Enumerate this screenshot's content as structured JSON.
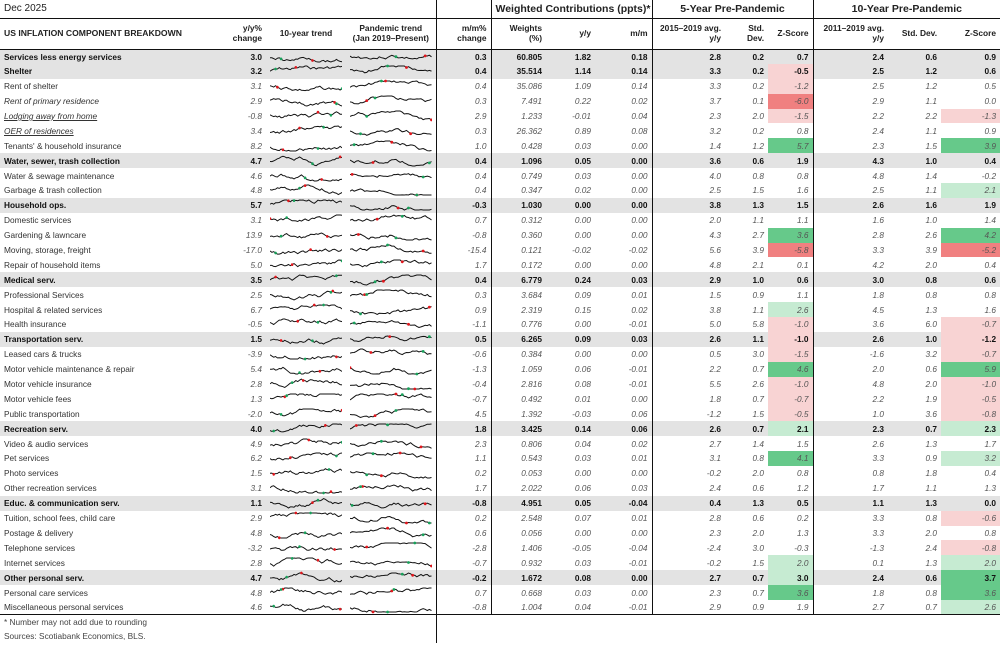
{
  "top": {
    "date": "Dec 2025",
    "group_weighted": "Weighted Contributions (ppts)*",
    "group_5y": "5-Year Pre-Pandemic",
    "group_10y": "10-Year Pre-Pandemic"
  },
  "headers": {
    "title": "US INFLATION COMPONENT BREAKDOWN",
    "yy": "y/y% change",
    "trend10": "10-year trend",
    "pandemic": "Pandemic trend (Jan 2019–Present)",
    "mm": "m/m% change",
    "weights": "Weights (%)",
    "w_yy": "y/y",
    "w_mm": "m/m",
    "p5_avg": "2015–2019 avg. y/y",
    "p5_sd": "Std. Dev.",
    "p5_z": "Z-Score",
    "p10_avg": "2011–2019 avg. y/y",
    "p10_sd": "Std. Dev.",
    "p10_z": "Z-Score"
  },
  "colors": {
    "neg_strong": "#f08080",
    "neg_light": "#f8d3d3",
    "pos_strong": "#66c98a",
    "pos_light": "#c6ebd2",
    "bold_row_bg": "#e3e3e3",
    "spark_line": "#111111",
    "spark_red": "#e0161c",
    "spark_green": "#18a05a"
  },
  "rows": [
    {
      "label": "Services less energy services",
      "style": "bold",
      "yy": "3.0",
      "mm": "0.3",
      "w": "60.805",
      "wyy": "1.82",
      "wmm": "0.18",
      "a5": "2.8",
      "s5": "0.2",
      "z5": "0.7",
      "a10": "2.4",
      "s10": "0.6",
      "z10": "0.9"
    },
    {
      "label": "Shelter",
      "style": "bold",
      "yy": "3.2",
      "mm": "0.4",
      "w": "35.514",
      "wyy": "1.14",
      "wmm": "0.14",
      "a5": "3.3",
      "s5": "0.2",
      "z5": "-0.5",
      "a10": "2.5",
      "s10": "1.2",
      "z10": "0.6"
    },
    {
      "label": "Rent of shelter",
      "style": "",
      "yy": "3.1",
      "mm": "0.4",
      "w": "35.086",
      "wyy": "1.09",
      "wmm": "0.14",
      "a5": "3.3",
      "s5": "0.2",
      "z5": "-1.2",
      "a10": "2.5",
      "s10": "1.2",
      "z10": "0.5"
    },
    {
      "label": "Rent of primary residence",
      "style": "ital",
      "yy": "2.9",
      "mm": "0.3",
      "w": "7.491",
      "wyy": "0.22",
      "wmm": "0.02",
      "a5": "3.7",
      "s5": "0.1",
      "z5": "-6.0",
      "a10": "2.9",
      "s10": "1.1",
      "z10": "0.0"
    },
    {
      "label": "Lodging away from home",
      "style": "ital ul",
      "yy": "-0.8",
      "mm": "2.9",
      "w": "1.233",
      "wyy": "-0.01",
      "wmm": "0.04",
      "a5": "2.3",
      "s5": "2.0",
      "z5": "-1.5",
      "a10": "2.2",
      "s10": "2.2",
      "z10": "-1.3"
    },
    {
      "label": "OER of residences",
      "style": "ital ul",
      "yy": "3.4",
      "mm": "0.3",
      "w": "26.362",
      "wyy": "0.89",
      "wmm": "0.08",
      "a5": "3.2",
      "s5": "0.2",
      "z5": "0.8",
      "a10": "2.4",
      "s10": "1.1",
      "z10": "0.9"
    },
    {
      "label": "Tenants' & household insurance",
      "style": "",
      "yy": "8.2",
      "mm": "1.0",
      "w": "0.428",
      "wyy": "0.03",
      "wmm": "0.00",
      "a5": "1.4",
      "s5": "1.2",
      "z5": "5.7",
      "a10": "2.3",
      "s10": "1.5",
      "z10": "3.9"
    },
    {
      "label": "Water, sewer, trash collection",
      "style": "bold",
      "yy": "4.7",
      "mm": "0.4",
      "w": "1.096",
      "wyy": "0.05",
      "wmm": "0.00",
      "a5": "3.6",
      "s5": "0.6",
      "z5": "1.9",
      "a10": "4.3",
      "s10": "1.0",
      "z10": "0.4"
    },
    {
      "label": "Water & sewage maintenance",
      "style": "",
      "yy": "4.6",
      "mm": "0.4",
      "w": "0.749",
      "wyy": "0.03",
      "wmm": "0.00",
      "a5": "4.0",
      "s5": "0.8",
      "z5": "0.8",
      "a10": "4.8",
      "s10": "1.4",
      "z10": "-0.2"
    },
    {
      "label": "Garbage & trash collection",
      "style": "",
      "yy": "4.8",
      "mm": "0.4",
      "w": "0.347",
      "wyy": "0.02",
      "wmm": "0.00",
      "a5": "2.5",
      "s5": "1.5",
      "z5": "1.6",
      "a10": "2.5",
      "s10": "1.1",
      "z10": "2.1"
    },
    {
      "label": "Household ops.",
      "style": "bold",
      "yy": "5.7",
      "mm": "-0.3",
      "w": "1.030",
      "wyy": "0.00",
      "wmm": "0.00",
      "a5": "3.8",
      "s5": "1.3",
      "z5": "1.5",
      "a10": "2.6",
      "s10": "1.6",
      "z10": "1.9"
    },
    {
      "label": "Domestic services",
      "style": "",
      "yy": "3.1",
      "mm": "0.7",
      "w": "0.312",
      "wyy": "0.00",
      "wmm": "0.00",
      "a5": "2.0",
      "s5": "1.1",
      "z5": "1.1",
      "a10": "1.6",
      "s10": "1.0",
      "z10": "1.4"
    },
    {
      "label": "Gardening & lawncare",
      "style": "",
      "yy": "13.9",
      "mm": "-0.8",
      "w": "0.360",
      "wyy": "0.00",
      "wmm": "0.00",
      "a5": "4.3",
      "s5": "2.7",
      "z5": "3.6",
      "a10": "2.8",
      "s10": "2.6",
      "z10": "4.2"
    },
    {
      "label": "Moving, storage, freight",
      "style": "",
      "yy": "-17.0",
      "mm": "-15.4",
      "w": "0.121",
      "wyy": "-0.02",
      "wmm": "-0.02",
      "a5": "5.6",
      "s5": "3.9",
      "z5": "-5.8",
      "a10": "3.3",
      "s10": "3.9",
      "z10": "-5.2"
    },
    {
      "label": "Repair of household items",
      "style": "",
      "yy": "5.0",
      "mm": "1.7",
      "w": "0.172",
      "wyy": "0.00",
      "wmm": "0.00",
      "a5": "4.8",
      "s5": "2.1",
      "z5": "0.1",
      "a10": "4.2",
      "s10": "2.0",
      "z10": "0.4"
    },
    {
      "label": "Medical serv.",
      "style": "bold",
      "yy": "3.5",
      "mm": "0.4",
      "w": "6.779",
      "wyy": "0.24",
      "wmm": "0.03",
      "a5": "2.9",
      "s5": "1.0",
      "z5": "0.6",
      "a10": "3.0",
      "s10": "0.8",
      "z10": "0.6"
    },
    {
      "label": "Professional Services",
      "style": "",
      "yy": "2.5",
      "mm": "0.3",
      "w": "3.684",
      "wyy": "0.09",
      "wmm": "0.01",
      "a5": "1.5",
      "s5": "0.9",
      "z5": "1.1",
      "a10": "1.8",
      "s10": "0.8",
      "z10": "0.8"
    },
    {
      "label": "Hospital & related services",
      "style": "",
      "yy": "6.7",
      "mm": "0.9",
      "w": "2.319",
      "wyy": "0.15",
      "wmm": "0.02",
      "a5": "3.8",
      "s5": "1.1",
      "z5": "2.6",
      "a10": "4.5",
      "s10": "1.3",
      "z10": "1.6"
    },
    {
      "label": "Health insurance",
      "style": "",
      "yy": "-0.5",
      "mm": "-1.1",
      "w": "0.776",
      "wyy": "0.00",
      "wmm": "-0.01",
      "a5": "5.0",
      "s5": "5.8",
      "z5": "-1.0",
      "a10": "3.6",
      "s10": "6.0",
      "z10": "-0.7"
    },
    {
      "label": "Transportation serv.",
      "style": "bold",
      "yy": "1.5",
      "mm": "0.5",
      "w": "6.265",
      "wyy": "0.09",
      "wmm": "0.03",
      "a5": "2.6",
      "s5": "1.1",
      "z5": "-1.0",
      "a10": "2.6",
      "s10": "1.0",
      "z10": "-1.2"
    },
    {
      "label": "Leased cars & trucks",
      "style": "",
      "yy": "-3.9",
      "mm": "-0.6",
      "w": "0.384",
      "wyy": "0.00",
      "wmm": "0.00",
      "a5": "0.5",
      "s5": "3.0",
      "z5": "-1.5",
      "a10": "-1.6",
      "s10": "3.2",
      "z10": "-0.7"
    },
    {
      "label": "Motor vehicle maintenance & repair",
      "style": "",
      "yy": "5.4",
      "mm": "-1.3",
      "w": "1.059",
      "wyy": "0.06",
      "wmm": "-0.01",
      "a5": "2.2",
      "s5": "0.7",
      "z5": "4.6",
      "a10": "2.0",
      "s10": "0.6",
      "z10": "5.9"
    },
    {
      "label": "Motor vehicle insurance",
      "style": "",
      "yy": "2.8",
      "mm": "-0.4",
      "w": "2.816",
      "wyy": "0.08",
      "wmm": "-0.01",
      "a5": "5.5",
      "s5": "2.6",
      "z5": "-1.0",
      "a10": "4.8",
      "s10": "2.0",
      "z10": "-1.0"
    },
    {
      "label": "Motor vehicle fees",
      "style": "",
      "yy": "1.3",
      "mm": "-0.7",
      "w": "0.492",
      "wyy": "0.01",
      "wmm": "0.00",
      "a5": "1.8",
      "s5": "0.7",
      "z5": "-0.7",
      "a10": "2.2",
      "s10": "1.9",
      "z10": "-0.5"
    },
    {
      "label": "Public transportation",
      "style": "",
      "yy": "-2.0",
      "mm": "4.5",
      "w": "1.392",
      "wyy": "-0.03",
      "wmm": "0.06",
      "a5": "-1.2",
      "s5": "1.5",
      "z5": "-0.5",
      "a10": "1.0",
      "s10": "3.6",
      "z10": "-0.8"
    },
    {
      "label": "Recreation serv.",
      "style": "bold",
      "yy": "4.0",
      "mm": "1.8",
      "w": "3.425",
      "wyy": "0.14",
      "wmm": "0.06",
      "a5": "2.6",
      "s5": "0.7",
      "z5": "2.1",
      "a10": "2.3",
      "s10": "0.7",
      "z10": "2.3"
    },
    {
      "label": "Video & audio services",
      "style": "",
      "yy": "4.9",
      "mm": "2.3",
      "w": "0.806",
      "wyy": "0.04",
      "wmm": "0.02",
      "a5": "2.7",
      "s5": "1.4",
      "z5": "1.5",
      "a10": "2.6",
      "s10": "1.3",
      "z10": "1.7"
    },
    {
      "label": "Pet services",
      "style": "",
      "yy": "6.2",
      "mm": "1.1",
      "w": "0.543",
      "wyy": "0.03",
      "wmm": "0.01",
      "a5": "3.1",
      "s5": "0.8",
      "z5": "4.1",
      "a10": "3.3",
      "s10": "0.9",
      "z10": "3.2"
    },
    {
      "label": "Photo services",
      "style": "",
      "yy": "1.5",
      "mm": "0.2",
      "w": "0.053",
      "wyy": "0.00",
      "wmm": "0.00",
      "a5": "-0.2",
      "s5": "2.0",
      "z5": "0.8",
      "a10": "0.8",
      "s10": "1.8",
      "z10": "0.4"
    },
    {
      "label": "Other recreation services",
      "style": "",
      "yy": "3.1",
      "mm": "1.7",
      "w": "2.022",
      "wyy": "0.06",
      "wmm": "0.03",
      "a5": "2.4",
      "s5": "0.6",
      "z5": "1.2",
      "a10": "1.7",
      "s10": "1.1",
      "z10": "1.3"
    },
    {
      "label": "Educ. & communication serv.",
      "style": "bold",
      "yy": "1.1",
      "mm": "-0.8",
      "w": "4.951",
      "wyy": "0.05",
      "wmm": "-0.04",
      "a5": "0.4",
      "s5": "1.3",
      "z5": "0.5",
      "a10": "1.1",
      "s10": "1.3",
      "z10": "0.0"
    },
    {
      "label": "Tuition, school fees, child care",
      "style": "",
      "yy": "2.9",
      "mm": "0.2",
      "w": "2.548",
      "wyy": "0.07",
      "wmm": "0.01",
      "a5": "2.8",
      "s5": "0.6",
      "z5": "0.2",
      "a10": "3.3",
      "s10": "0.8",
      "z10": "-0.6"
    },
    {
      "label": "Postage & delivery",
      "style": "",
      "yy": "4.8",
      "mm": "0.6",
      "w": "0.056",
      "wyy": "0.00",
      "wmm": "0.00",
      "a5": "2.3",
      "s5": "2.0",
      "z5": "1.3",
      "a10": "3.3",
      "s10": "2.0",
      "z10": "0.8"
    },
    {
      "label": "Telephone services",
      "style": "",
      "yy": "-3.2",
      "mm": "-2.8",
      "w": "1.406",
      "wyy": "-0.05",
      "wmm": "-0.04",
      "a5": "-2.4",
      "s5": "3.0",
      "z5": "-0.3",
      "a10": "-1.3",
      "s10": "2.4",
      "z10": "-0.8"
    },
    {
      "label": "Internet services",
      "style": "",
      "yy": "2.8",
      "mm": "-0.7",
      "w": "0.932",
      "wyy": "0.03",
      "wmm": "-0.01",
      "a5": "-0.2",
      "s5": "1.5",
      "z5": "2.0",
      "a10": "0.1",
      "s10": "1.3",
      "z10": "2.0"
    },
    {
      "label": "Other personal serv.",
      "style": "bold",
      "yy": "4.7",
      "mm": "-0.2",
      "w": "1.672",
      "wyy": "0.08",
      "wmm": "0.00",
      "a5": "2.7",
      "s5": "0.7",
      "z5": "3.0",
      "a10": "2.4",
      "s10": "0.6",
      "z10": "3.7"
    },
    {
      "label": "Personal care services",
      "style": "",
      "yy": "4.8",
      "mm": "0.7",
      "w": "0.668",
      "wyy": "0.03",
      "wmm": "0.00",
      "a5": "2.3",
      "s5": "0.7",
      "z5": "3.6",
      "a10": "1.8",
      "s10": "0.8",
      "z10": "3.6"
    },
    {
      "label": "Miscellaneous personal services",
      "style": "",
      "yy": "4.6",
      "mm": "-0.8",
      "w": "1.004",
      "wyy": "0.04",
      "wmm": "-0.01",
      "a5": "2.9",
      "s5": "0.9",
      "z5": "1.9",
      "a10": "2.7",
      "s10": "0.7",
      "z10": "2.6"
    }
  ],
  "footnotes": {
    "note1": "* Number may not add due to rounding",
    "note2": "Sources: Scotiabank Economics, BLS."
  }
}
